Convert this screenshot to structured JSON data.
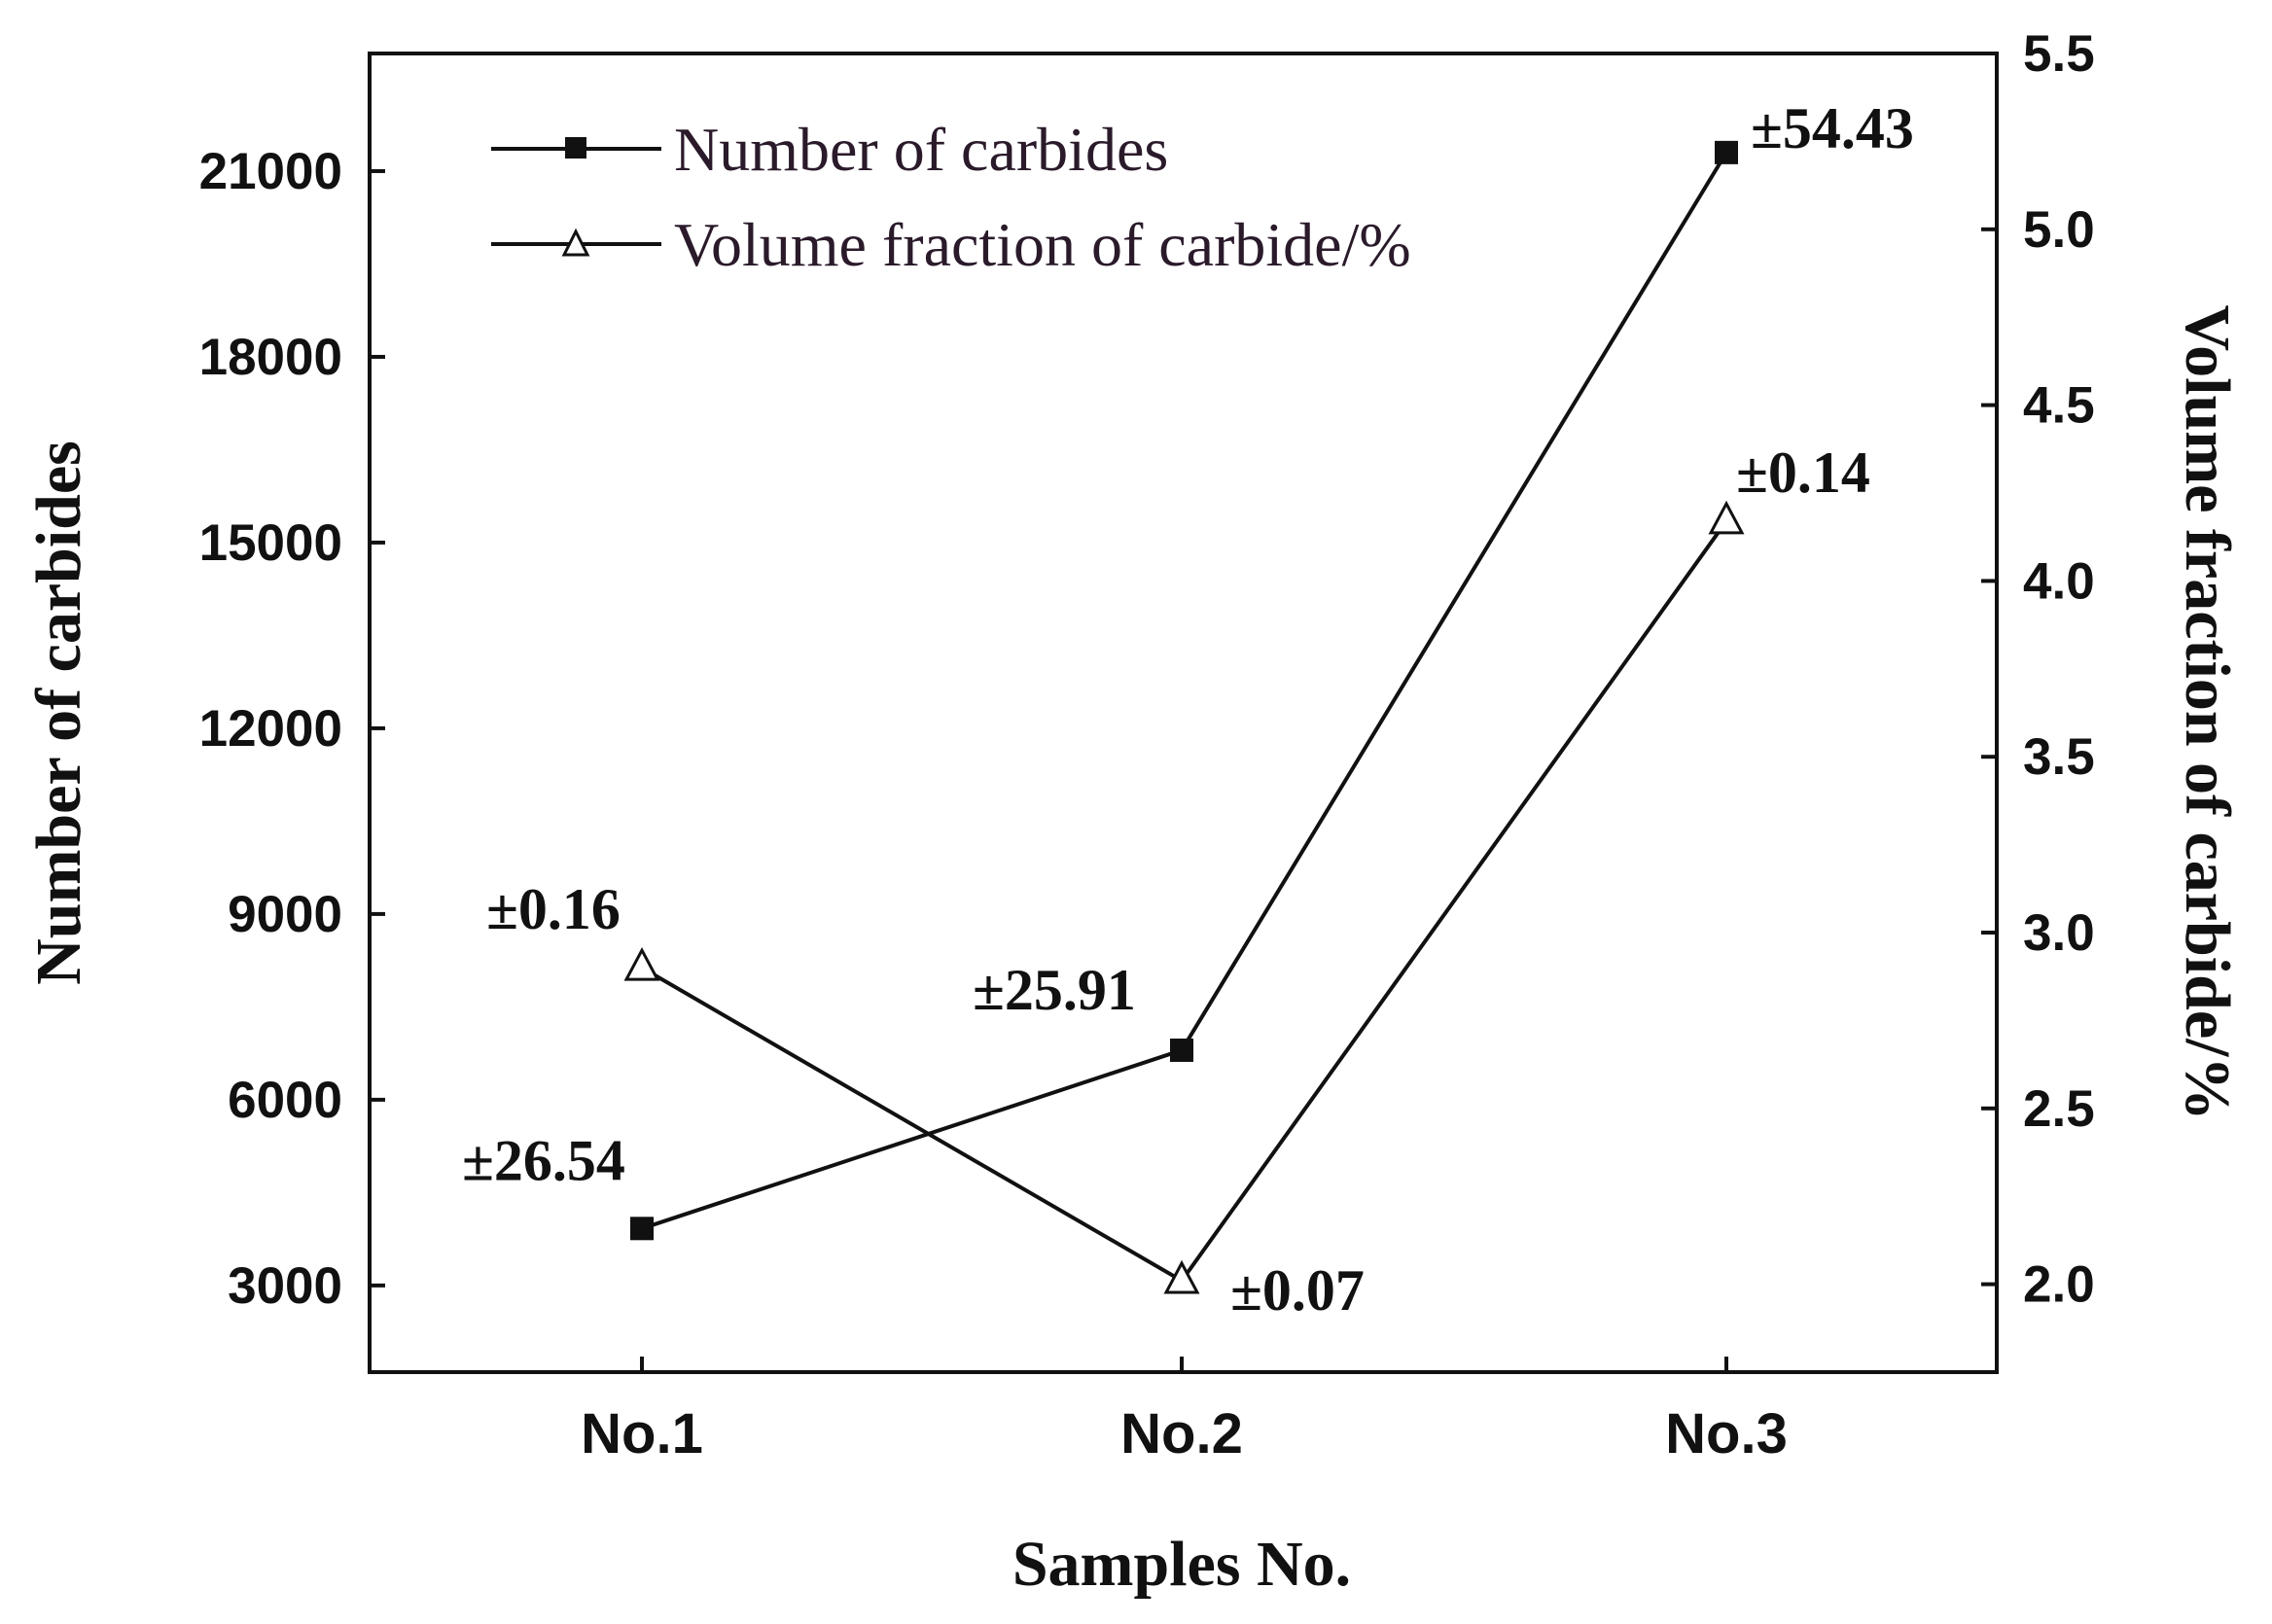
{
  "chart_data": {
    "type": "line",
    "categories": [
      "No.1",
      "No.2",
      "No.3"
    ],
    "xlabel": "Samples No.",
    "y_left": {
      "label": "Number of carbides",
      "range": [
        1600,
        22900
      ],
      "ticks": [
        "3000",
        "6000",
        "9000",
        "12000",
        "15000",
        "18000",
        "21000"
      ]
    },
    "y_right": {
      "label": "Volume fraction of carbide/%",
      "range": [
        1.75,
        5.5
      ],
      "ticks": [
        "2.0",
        "2.5",
        "3.0",
        "3.5",
        "4.0",
        "4.5",
        "5.0",
        "5.5"
      ]
    },
    "series": [
      {
        "name": "Number of carbides",
        "axis": "left",
        "marker": "filled-square",
        "values": [
          3920,
          6800,
          21300
        ],
        "error_labels": [
          "±26.54",
          "±25.91",
          "±54.43"
        ]
      },
      {
        "name": "Volume fraction of carbide/%",
        "axis": "right",
        "marker": "open-triangle",
        "values": [
          2.9,
          2.01,
          4.17
        ],
        "error_labels": [
          "±0.16",
          "±0.07",
          "±0.14"
        ]
      }
    ],
    "legend_position": "top-left",
    "grid": false
  }
}
